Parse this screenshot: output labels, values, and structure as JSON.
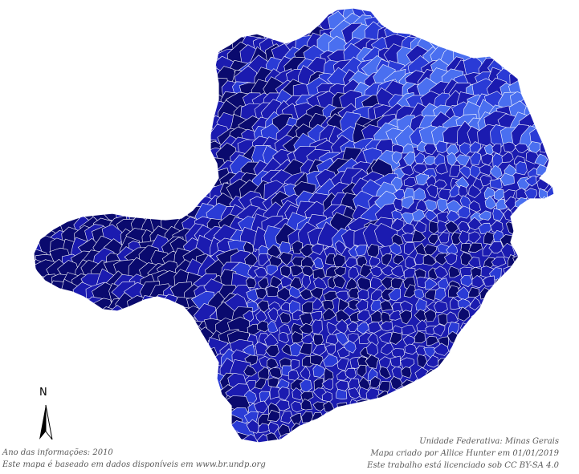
{
  "map": {
    "region": "Minas Gerais",
    "type": "choropleth",
    "palette": [
      "#0a0a6e",
      "#1b1bb0",
      "#2a3bd6",
      "#4a6ff0",
      "#3d5ce8"
    ],
    "border_color": "#ffffff",
    "north_label": "N"
  },
  "captions": {
    "year": "Ano das informações: 2010",
    "source": "Este mapa é baseado em dados disponíveis em www.br.undp.org",
    "federative_unit": "Unidade Federativa: Minas Gerais",
    "author": "Mapa criado por Allice Hunter em 01/01/2019",
    "license": "Este trabalho está licenciado sob CC BY-SA 4.0"
  }
}
